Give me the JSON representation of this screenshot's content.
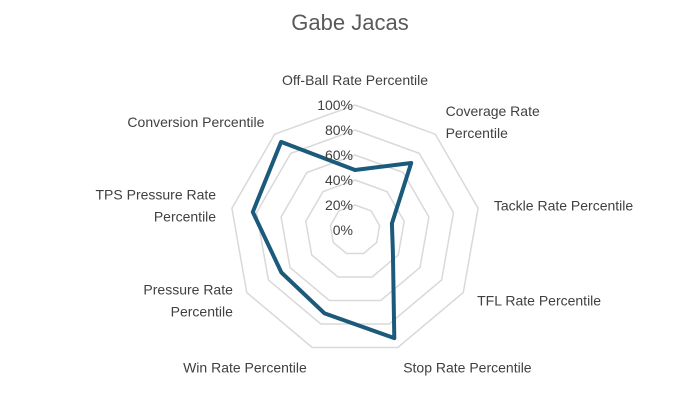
{
  "chart_data": {
    "type": "radar",
    "title": "Gabe Jacas",
    "axes": [
      [
        "Off-Ball Rate Percentile"
      ],
      [
        "Coverage Rate",
        "Percentile"
      ],
      [
        "Tackle Rate Percentile"
      ],
      [
        "TFL Rate Percentile"
      ],
      [
        "Stop Rate Percentile"
      ],
      [
        "Win Rate Percentile"
      ],
      [
        "Pressure Rate",
        "Percentile"
      ],
      [
        "TPS Pressure Rate",
        "Percentile"
      ],
      [
        "Conversion Percentile"
      ]
    ],
    "ticks": [
      "0%",
      "20%",
      "40%",
      "60%",
      "80%",
      "100%"
    ],
    "range": [
      0,
      100
    ],
    "grid": true,
    "legend": "none",
    "series": [
      {
        "values": [
          48,
          70,
          30,
          35,
          92,
          71,
          68,
          83,
          92
        ]
      }
    ],
    "colors": {
      "series": "#1b5a7a",
      "grid": "#d9d9d9",
      "text": "#404040",
      "title": "#595959"
    }
  }
}
